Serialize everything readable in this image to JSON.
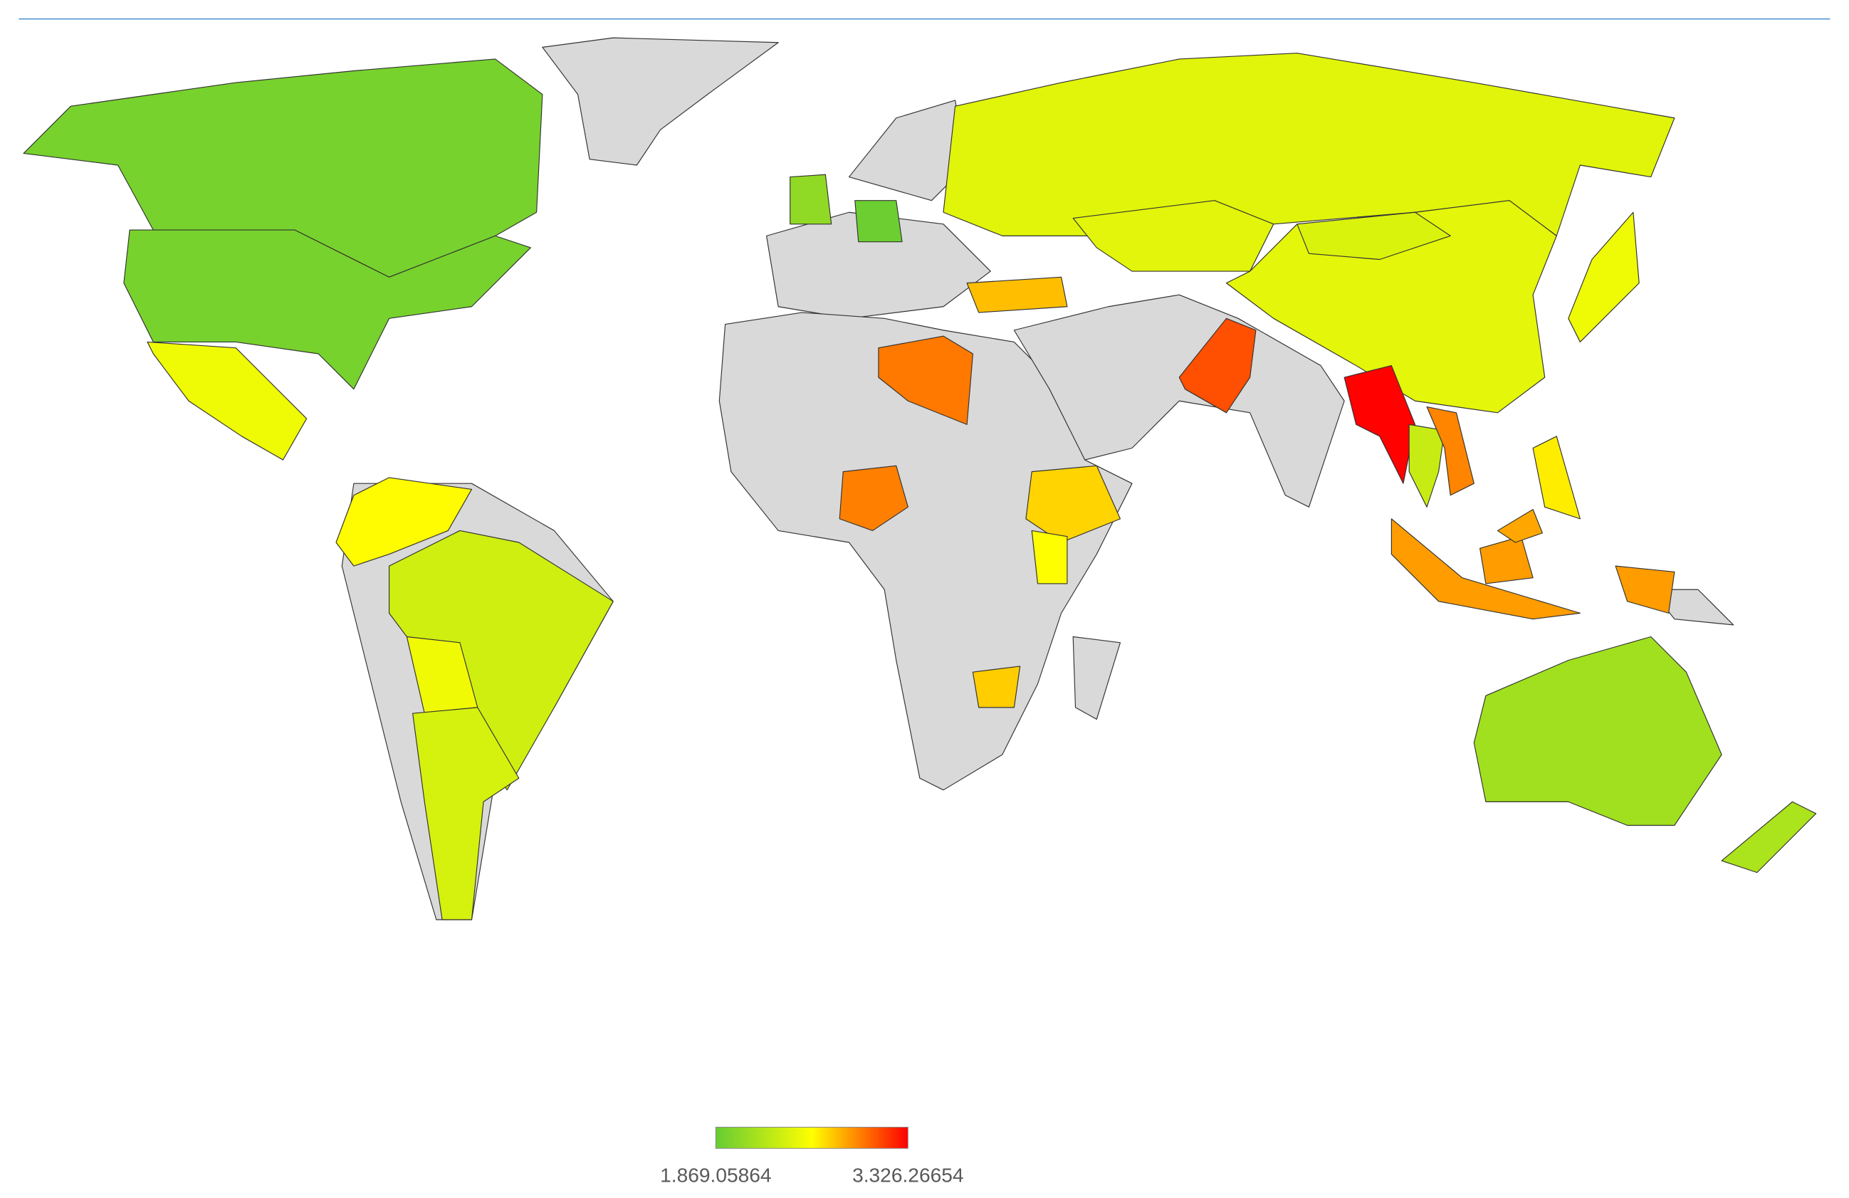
{
  "chart_data": {
    "type": "choropleth",
    "values": [
      1950,
      1950,
      2520,
      2610,
      2370,
      2530,
      2400,
      2070,
      1900,
      2450,
      2460,
      2470,
      2420,
      2520,
      2780,
      2980,
      2960,
      2720,
      2600,
      2740,
      3100,
      3320,
      2330,
      2950,
      2880,
      2850,
      2650,
      2150,
      2200
    ],
    "missing_color": "#d9d9d9",
    "colors": [
      "#66cc33",
      "#ffff00",
      "#ff0000"
    ],
    "scale": [
      {
        "value": 1869.05864,
        "label": "1.869.05864"
      },
      {
        "value": 3326.26654,
        "label": "3.326.26654"
      }
    ]
  }
}
